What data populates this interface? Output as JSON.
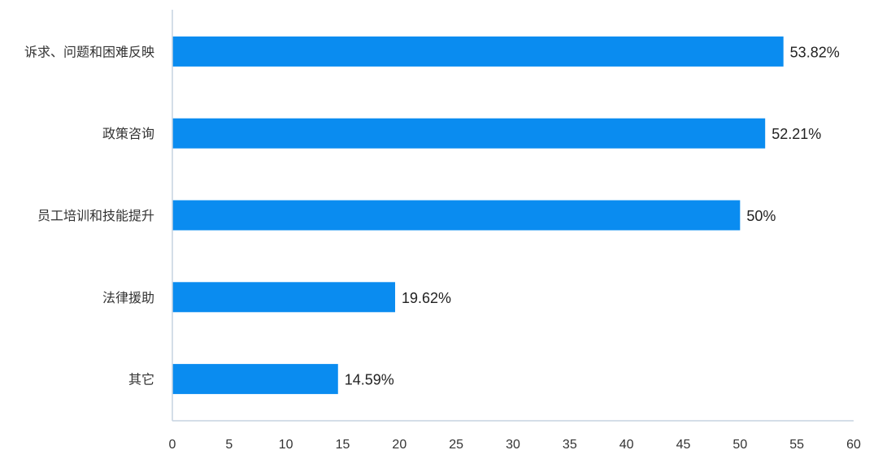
{
  "chart_data": {
    "type": "bar",
    "orientation": "horizontal",
    "categories": [
      "诉求、问题和困难反映",
      "政策咨询",
      "员工培训和技能提升",
      "法律援助",
      "其它"
    ],
    "values": [
      53.82,
      52.21,
      50,
      19.62,
      14.59
    ],
    "value_labels": [
      "53.82%",
      "52.21%",
      "50%",
      "19.62%",
      "14.59%"
    ],
    "title": "",
    "xlabel": "",
    "ylabel": "",
    "xlim": [
      0,
      60
    ],
    "ticks": [
      0,
      5,
      10,
      15,
      20,
      25,
      30,
      35,
      40,
      45,
      50,
      55,
      60
    ],
    "grid": false,
    "legend": "none",
    "bar_color": "#0a8cf0",
    "axis_color": "#c6d4e1"
  }
}
